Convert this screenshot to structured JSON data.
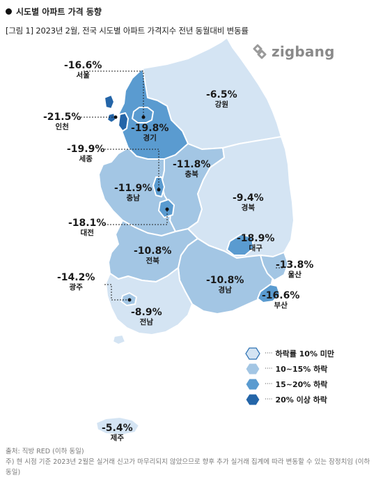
{
  "heading": "시도별 아파트 가격 동향",
  "caption": "[그림 1] 2023년 2월, 전국 시도별 아파트 가격지수 전년 동월대비 변동률",
  "logo": "zigbang",
  "colors": {
    "lt10": "#d4e4f3",
    "r10_15": "#a3c6e4",
    "r15_20": "#5a9bd0",
    "gte20": "#2465a8",
    "border": "#ffffff"
  },
  "regions": [
    {
      "id": "seoul",
      "name": "서울",
      "value": "-16.6%",
      "tier": "r15_20"
    },
    {
      "id": "incheon",
      "name": "인천",
      "value": "-21.5%",
      "tier": "gte20"
    },
    {
      "id": "gyeonggi",
      "name": "경기",
      "value": "-19.8%",
      "tier": "r15_20"
    },
    {
      "id": "gangwon",
      "name": "강원",
      "value": "-6.5%",
      "tier": "lt10"
    },
    {
      "id": "sejong",
      "name": "세종",
      "value": "-19.9%",
      "tier": "r15_20"
    },
    {
      "id": "chungbuk",
      "name": "충북",
      "value": "-11.8%",
      "tier": "r10_15"
    },
    {
      "id": "chungnam",
      "name": "충남",
      "value": "-11.9%",
      "tier": "r10_15"
    },
    {
      "id": "daejeon",
      "name": "대전",
      "value": "-18.1%",
      "tier": "r15_20"
    },
    {
      "id": "gyeongbuk",
      "name": "경북",
      "value": "-9.4%",
      "tier": "lt10"
    },
    {
      "id": "daegu",
      "name": "대구",
      "value": "-18.9%",
      "tier": "r15_20"
    },
    {
      "id": "jeonbuk",
      "name": "전북",
      "value": "-10.8%",
      "tier": "r10_15"
    },
    {
      "id": "ulsan",
      "name": "울산",
      "value": "-13.8%",
      "tier": "r10_15"
    },
    {
      "id": "gwangju",
      "name": "광주",
      "value": "-14.2%",
      "tier": "r10_15"
    },
    {
      "id": "gyeongnam",
      "name": "경남",
      "value": "-10.8%",
      "tier": "r10_15"
    },
    {
      "id": "busan",
      "name": "부산",
      "value": "-16.6%",
      "tier": "r15_20"
    },
    {
      "id": "jeonnam",
      "name": "전남",
      "value": "-8.9%",
      "tier": "lt10"
    },
    {
      "id": "jeju",
      "name": "제주",
      "value": "-5.4%",
      "tier": "lt10"
    }
  ],
  "legend": [
    {
      "tier": "lt10",
      "dots": "····",
      "label": "하락률 10% 미만"
    },
    {
      "tier": "r10_15",
      "dots": "····",
      "label": "10~15% 하락"
    },
    {
      "tier": "r15_20",
      "dots": "····",
      "label": "15~20% 하락"
    },
    {
      "tier": "gte20",
      "dots": "····",
      "label": "20% 이상 하락"
    }
  ],
  "footnotes": [
    "출처: 직방 RED (이하 동일)",
    "주) 현 시점 기준 2023년 2월은 실거래 신고가 마무리되지 않았으므로 향후 추가 실거래 집계에 따라 변동할 수 있는 잠정치임 (이하 동일)"
  ]
}
